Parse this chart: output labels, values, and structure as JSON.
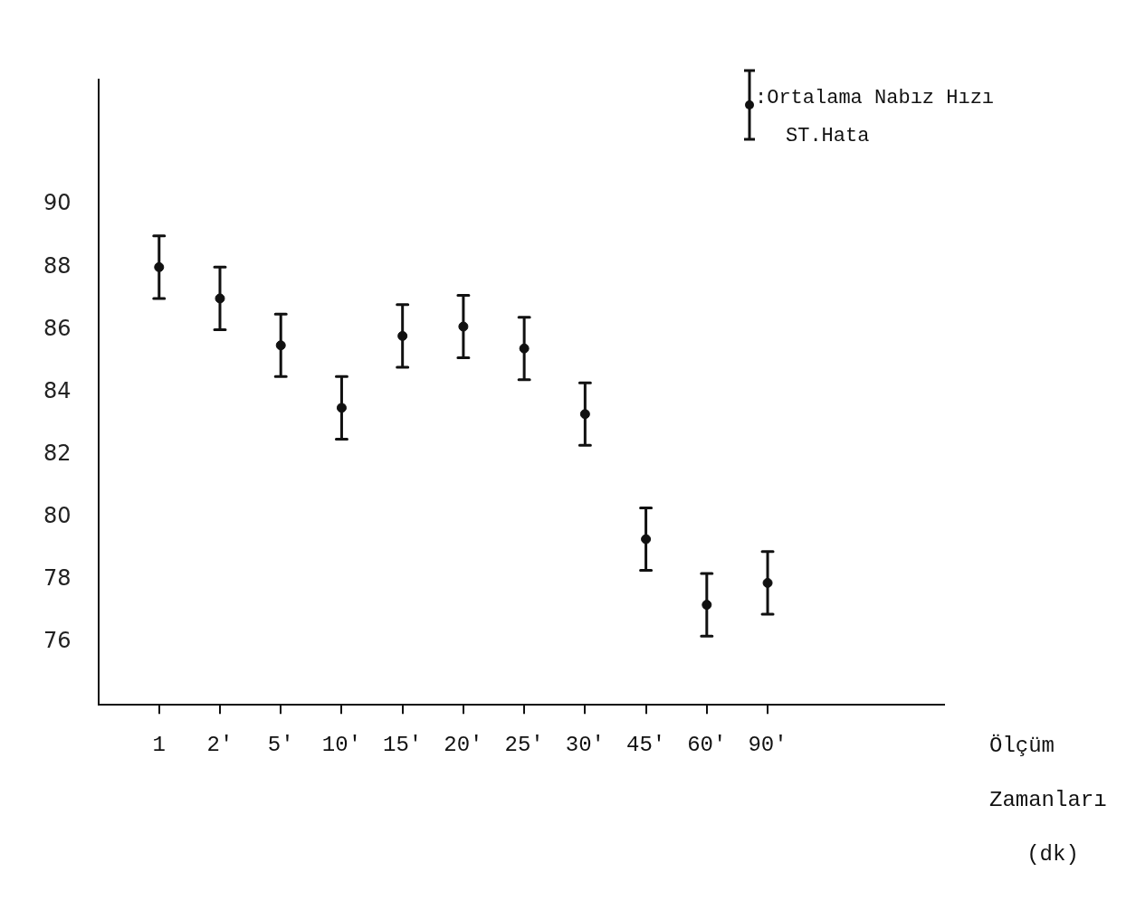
{
  "chart_data": {
    "type": "scatter",
    "xlabel": "Ölçüm Zamanları (dk)",
    "categories": [
      "1",
      "2'",
      "5'",
      "10'",
      "15'",
      "20'",
      "25'",
      "30'",
      "45'",
      "60'",
      "90'"
    ],
    "series": [
      {
        "name": ":Ortalama Nabız Hızı ST.Hata",
        "color": "#111111",
        "values": [
          88,
          87,
          85.5,
          83.5,
          85.8,
          86.1,
          85.4,
          83.3,
          79.3,
          77.2,
          77.9
        ],
        "errors": [
          1,
          1,
          1,
          1,
          1,
          1,
          1,
          1,
          1,
          1,
          1
        ]
      }
    ],
    "ylim": [
      74,
      94
    ],
    "yticks": [
      76,
      78,
      80,
      82,
      84,
      86,
      88,
      90
    ],
    "grid": false,
    "legend": "top right",
    "marker": "circle"
  }
}
